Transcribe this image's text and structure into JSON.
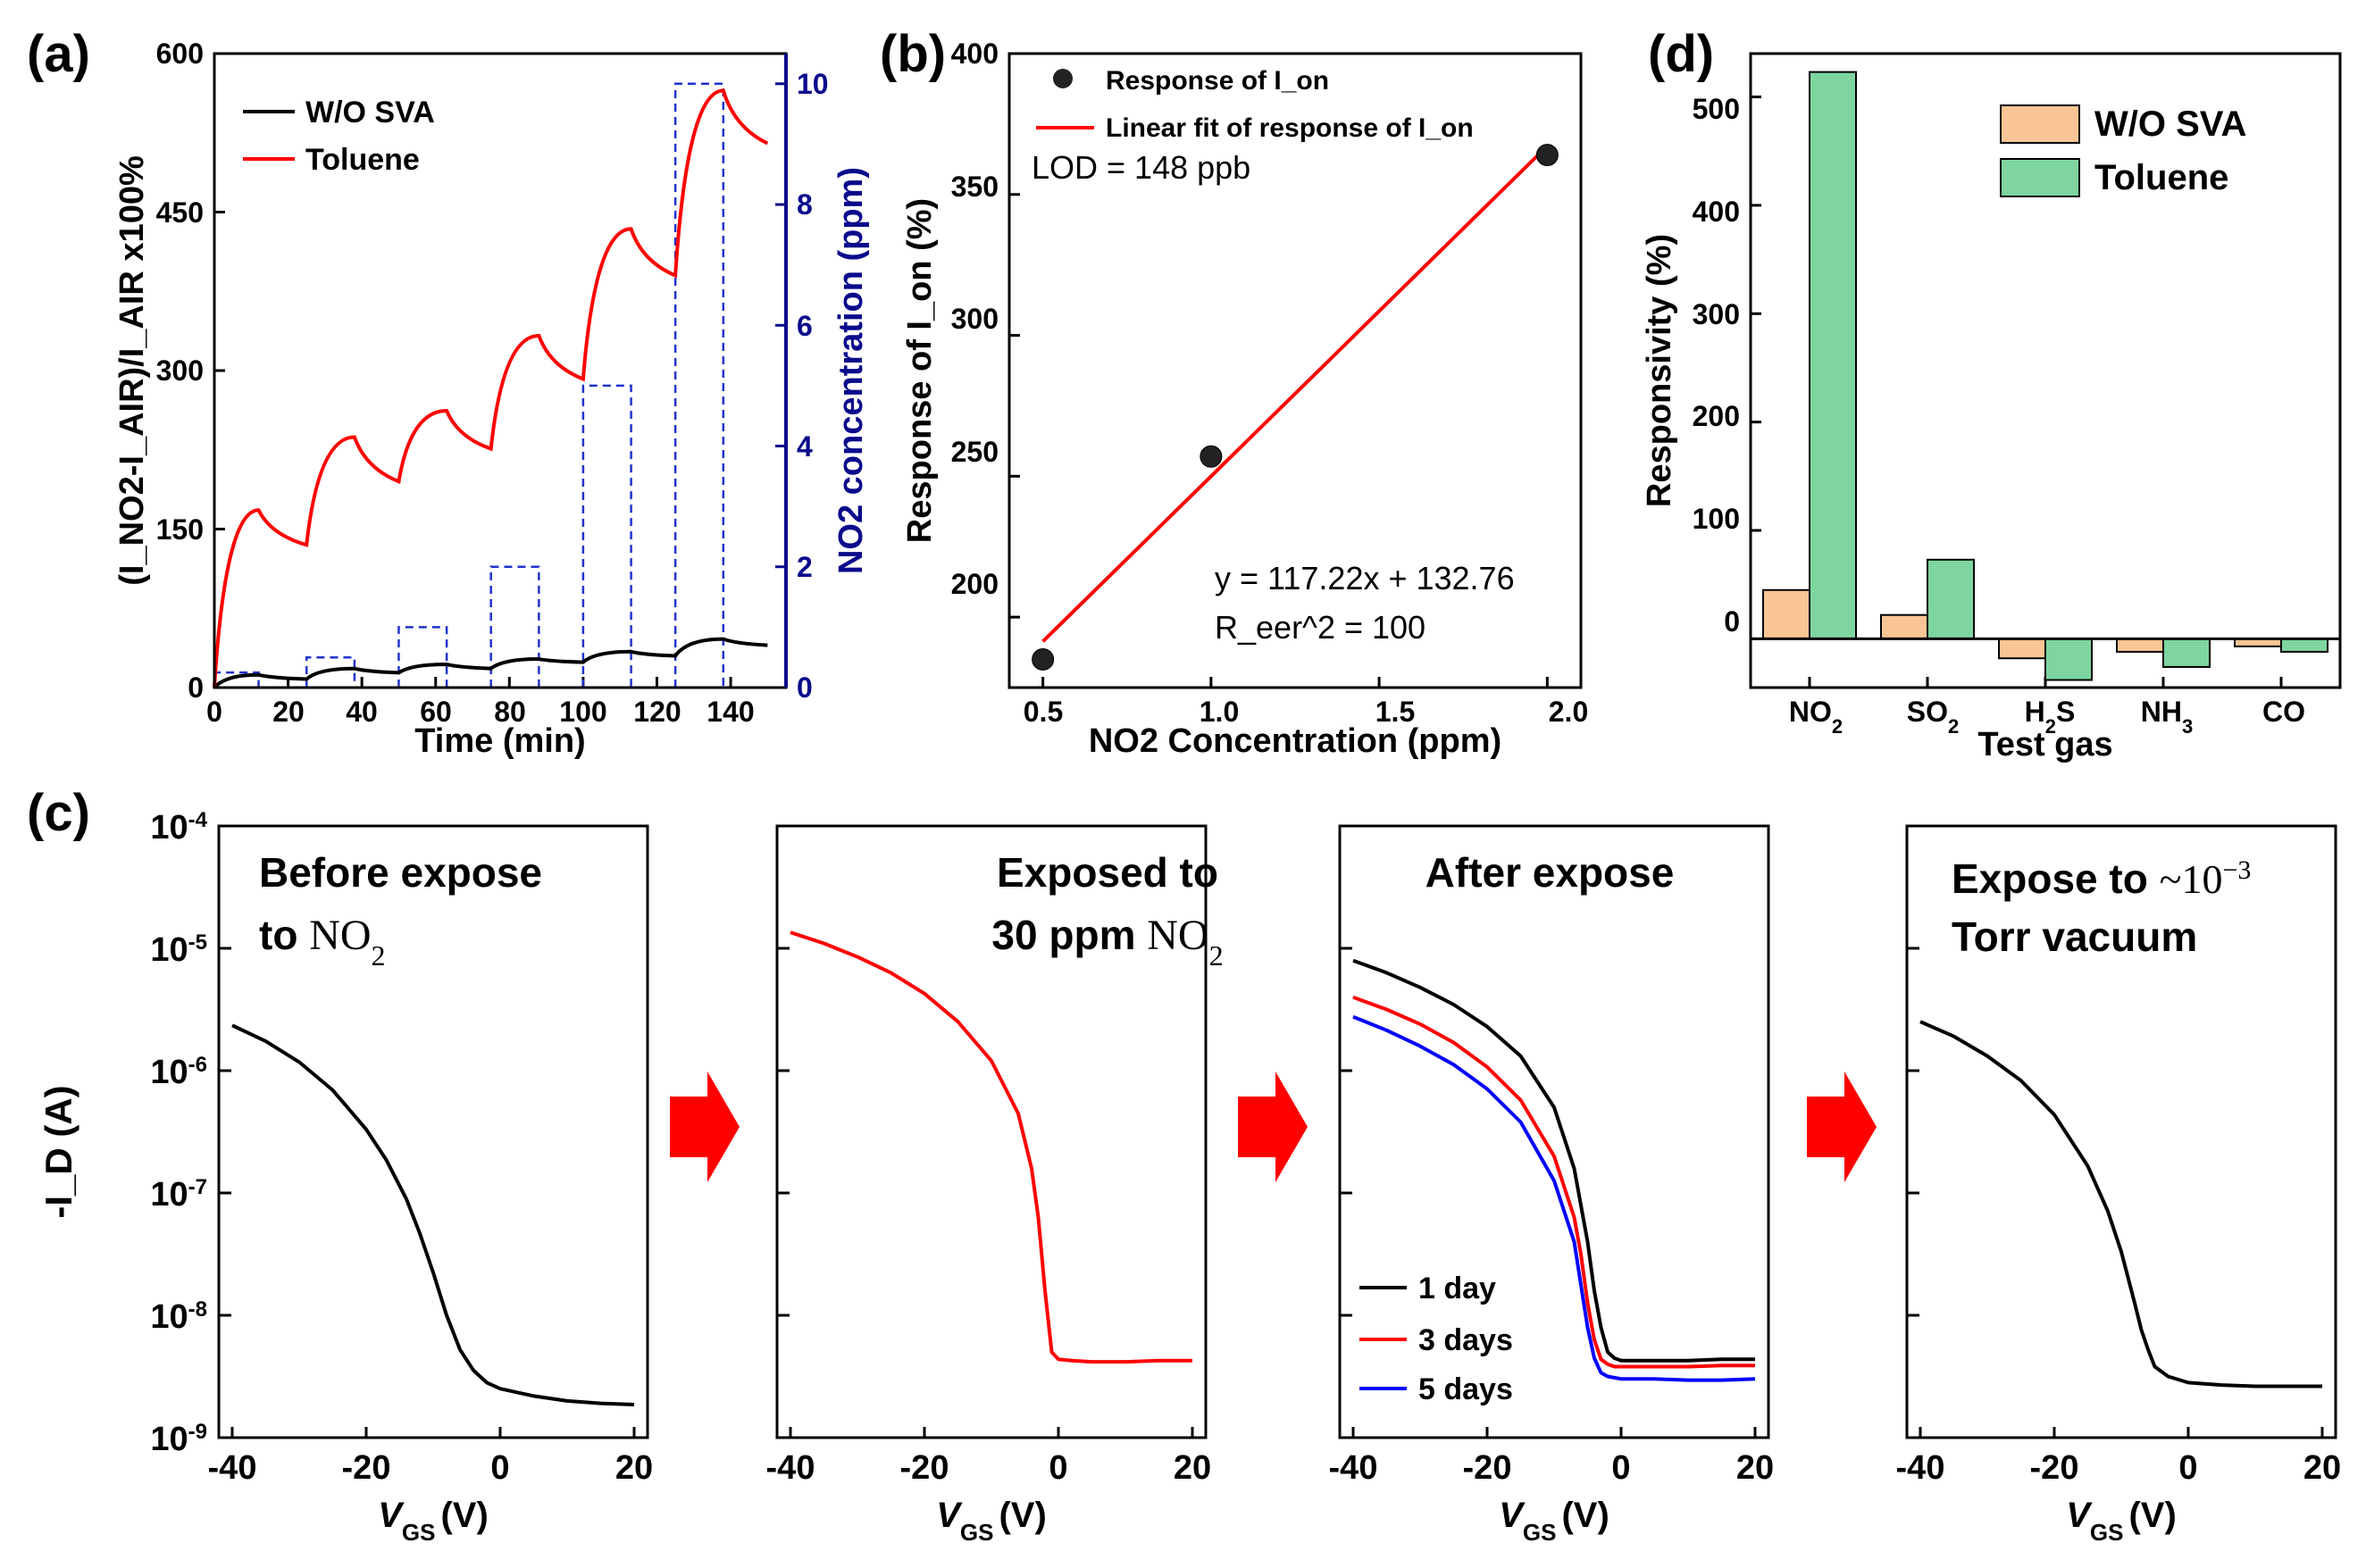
{
  "chart_data": [
    {
      "id": "a",
      "panel_label": "(a)",
      "type": "line",
      "xlabel": "Time (min)",
      "ylabel": "(I_NO2-I_AIR)/I_AIR x100%",
      "y2label": "NO2 concentration (ppm)",
      "xlim": [
        0,
        155
      ],
      "ylim": [
        0,
        600
      ],
      "y2lim": [
        0,
        10.5
      ],
      "xticks": [
        "0",
        "20",
        "40",
        "60",
        "80",
        "100",
        "120",
        "140"
      ],
      "yticks": [
        "0",
        "150",
        "300",
        "450",
        "600"
      ],
      "y2ticks": [
        "0",
        "2",
        "4",
        "6",
        "8",
        "10"
      ],
      "legend": [
        "W/O SVA",
        "Toluene"
      ],
      "series": [
        {
          "name": "W/O SVA",
          "color": "#000000",
          "x": [
            0,
            12,
            25,
            38,
            50,
            63,
            75,
            88,
            100,
            113,
            125,
            138,
            150
          ],
          "y": [
            0,
            12,
            8,
            18,
            14,
            22,
            18,
            27,
            24,
            34,
            30,
            46,
            40
          ]
        },
        {
          "name": "Toluene",
          "color": "#ff0000",
          "x": [
            0,
            12,
            25,
            38,
            50,
            63,
            75,
            88,
            100,
            113,
            125,
            138,
            150
          ],
          "y": [
            0,
            168,
            135,
            237,
            195,
            262,
            226,
            333,
            292,
            434,
            390,
            565,
            515
          ]
        },
        {
          "name": "NO2 concentration",
          "color": "#2233cc",
          "style": "dashed",
          "axis": "y2",
          "pulses": [
            [
              0,
              12,
              0.25
            ],
            [
              25,
              38,
              0.5
            ],
            [
              50,
              63,
              1
            ],
            [
              75,
              88,
              2
            ],
            [
              100,
              113,
              5
            ],
            [
              125,
              138,
              10
            ]
          ]
        }
      ]
    },
    {
      "id": "b",
      "panel_label": "(b)",
      "type": "scatter",
      "xlabel": "NO2 Concentration (ppm)",
      "ylabel": "Response of I_on (%)",
      "xlim": [
        0.4,
        2.1
      ],
      "ylim": [
        175,
        400
      ],
      "xticks": [
        "0.5",
        "1.0",
        "1.5",
        "2.0"
      ],
      "yticks": [
        "200",
        "250",
        "300",
        "350",
        "400"
      ],
      "x": [
        0.5,
        1.0,
        2.0
      ],
      "y": [
        185,
        257,
        364
      ],
      "fit": {
        "slope": 117.22,
        "intercept": 132.76
      },
      "legend": [
        "Response of I_on",
        "Linear fit of response of I_on"
      ],
      "annotations": [
        "LOD = 148 ppb",
        "y = 117.22x + 132.76",
        "R_eer^2 = 100"
      ]
    },
    {
      "id": "d",
      "panel_label": "(d)",
      "type": "bar",
      "xlabel": "Test gas",
      "ylabel": "Responsivity (%)",
      "categories": [
        "NO2",
        "SO2",
        "H2S",
        "NH3",
        "CO"
      ],
      "ylim": [
        -45,
        540
      ],
      "yticks": [
        "0",
        "100",
        "200",
        "300",
        "400",
        "500"
      ],
      "series": [
        {
          "name": "W/O SVA",
          "color": "#f9c594",
          "values": [
            45,
            22,
            -18,
            -12,
            -7
          ]
        },
        {
          "name": "Toluene",
          "color": "#7ed5a0",
          "values": [
            523,
            73,
            -38,
            -26,
            -12
          ]
        }
      ]
    },
    {
      "id": "c",
      "panel_label": "(c)",
      "type": "line",
      "scale_y": "log",
      "xlabel": "V_GS (V)",
      "ylabel": "-I_D (A)",
      "xlim": [
        -42,
        22
      ],
      "ylim_log10": [
        -9,
        -4
      ],
      "xticks": [
        "-40",
        "-20",
        "0",
        "20"
      ],
      "yticks": [
        "10^-4",
        "10^-5",
        "10^-6",
        "10^-7",
        "10^-8",
        "10^-9"
      ],
      "subplots": [
        {
          "title_lines": [
            "Before expose",
            "to NO2"
          ],
          "series": [
            {
              "name": "initial",
              "color": "#000000",
              "x": [
                -40,
                -35,
                -30,
                -25,
                -20,
                -17,
                -14,
                -12,
                -10,
                -8,
                -6,
                -4,
                -2,
                0,
                5,
                10,
                15,
                20
              ],
              "log10y": [
                -5.63,
                -5.76,
                -5.93,
                -6.16,
                -6.48,
                -6.73,
                -7.05,
                -7.33,
                -7.65,
                -8.0,
                -8.28,
                -8.45,
                -8.55,
                -8.6,
                -8.66,
                -8.7,
                -8.72,
                -8.73
              ]
            }
          ]
        },
        {
          "title_lines": [
            "Exposed to",
            "30 ppm NO2"
          ],
          "series": [
            {
              "name": "exposed",
              "color": "#ff0000",
              "x": [
                -40,
                -35,
                -30,
                -25,
                -20,
                -15,
                -10,
                -6,
                -4,
                -3,
                -2,
                -1,
                0,
                2,
                5,
                10,
                15,
                20
              ],
              "log10y": [
                -4.87,
                -4.96,
                -5.07,
                -5.2,
                -5.37,
                -5.6,
                -5.92,
                -6.35,
                -6.8,
                -7.2,
                -7.8,
                -8.3,
                -8.36,
                -8.37,
                -8.38,
                -8.38,
                -8.37,
                -8.37
              ]
            }
          ]
        },
        {
          "title_lines": [
            "After expose"
          ],
          "legend": [
            "1 day",
            "3 days",
            "5 days"
          ],
          "series": [
            {
              "name": "1 day",
              "color": "#000000",
              "x": [
                -40,
                -35,
                -30,
                -25,
                -20,
                -15,
                -10,
                -7,
                -5,
                -4,
                -3,
                -2,
                -1,
                0,
                5,
                10,
                15,
                20
              ],
              "log10y": [
                -5.1,
                -5.2,
                -5.32,
                -5.46,
                -5.64,
                -5.88,
                -6.3,
                -6.8,
                -7.4,
                -7.8,
                -8.1,
                -8.3,
                -8.35,
                -8.37,
                -8.37,
                -8.37,
                -8.36,
                -8.36
              ]
            },
            {
              "name": "3 days",
              "color": "#ff0000",
              "x": [
                -40,
                -35,
                -30,
                -25,
                -20,
                -15,
                -10,
                -7,
                -6,
                -5,
                -4,
                -3,
                -2,
                -1,
                0,
                5,
                10,
                15,
                20
              ],
              "log10y": [
                -5.4,
                -5.5,
                -5.62,
                -5.77,
                -5.97,
                -6.24,
                -6.7,
                -7.2,
                -7.5,
                -7.9,
                -8.2,
                -8.36,
                -8.4,
                -8.42,
                -8.42,
                -8.42,
                -8.42,
                -8.41,
                -8.41
              ]
            },
            {
              "name": "5 days",
              "color": "#0000ff",
              "x": [
                -40,
                -35,
                -30,
                -25,
                -20,
                -15,
                -10,
                -7,
                -6,
                -5,
                -4,
                -3,
                -2,
                -1,
                0,
                5,
                10,
                15,
                20
              ],
              "log10y": [
                -5.56,
                -5.67,
                -5.8,
                -5.95,
                -6.15,
                -6.42,
                -6.9,
                -7.4,
                -7.75,
                -8.1,
                -8.35,
                -8.47,
                -8.5,
                -8.51,
                -8.52,
                -8.52,
                -8.53,
                -8.53,
                -8.52
              ]
            }
          ]
        },
        {
          "title_lines": [
            "Expose to ~10^-3",
            "Torr vacuum"
          ],
          "series": [
            {
              "name": "vacuum",
              "color": "#000000",
              "x": [
                -40,
                -35,
                -30,
                -25,
                -20,
                -15,
                -12,
                -10,
                -8,
                -7,
                -6,
                -5,
                -3,
                0,
                5,
                10,
                15,
                20
              ],
              "log10y": [
                -5.6,
                -5.72,
                -5.88,
                -6.08,
                -6.36,
                -6.78,
                -7.15,
                -7.48,
                -7.9,
                -8.12,
                -8.28,
                -8.42,
                -8.5,
                -8.55,
                -8.57,
                -8.58,
                -8.58,
                -8.58
              ]
            }
          ]
        }
      ]
    }
  ]
}
